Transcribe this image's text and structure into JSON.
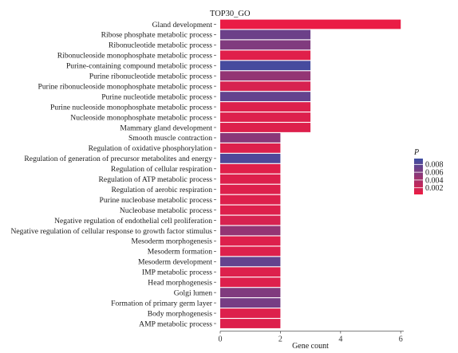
{
  "chart_data": {
    "type": "bar",
    "orientation": "horizontal",
    "title": "TOP30_GO",
    "xlabel": "Gene count",
    "ylabel": "",
    "xlim": [
      0,
      6.1
    ],
    "xticks": [
      0,
      2,
      4,
      6
    ],
    "categories": [
      "Gland development",
      "Ribose phosphate metabolic process",
      "Ribonucleotide metabolic process",
      "Ribonucleoside monophosphate metabolic process",
      "Purine-containing compound metabolic process",
      "Purine ribonucleotide metabolic process",
      "Purine ribonucleoside monophosphate metabolic process",
      "Purine nucleotide metabolic process",
      "Purine nucleoside monophosphate metabolic process",
      "Nucleoside monophosphate metabolic process",
      "Mammary gland development",
      "Smooth muscle contraction",
      "Regulation of oxidative phosphorylation",
      "Regulation of generation of precursor metabolites and energy",
      "Regulation of cellular respiration",
      "Regulation of ATP metabolic process",
      "Regulation of aerobic respiration",
      "Purine nucleobase metabolic process",
      "Nucleobase metabolic process",
      "Negative regulation of endothelial cell proliferation",
      "Negative regulation of cellular response to growth factor stimulus",
      "Mesoderm morphogenesis",
      "Mesoderm formation",
      "Mesoderm development",
      "IMP metabolic process",
      "Head morphogenesis",
      "Golgi lumen",
      "Formation of primary germ layer",
      "Body morphogenesis",
      "AMP metabolic process"
    ],
    "values": [
      6,
      3,
      3,
      3,
      3,
      3,
      3,
      3,
      3,
      3,
      3,
      2,
      2,
      2,
      2,
      2,
      2,
      2,
      2,
      2,
      2,
      2,
      2,
      2,
      2,
      2,
      2,
      2,
      2,
      2
    ],
    "p_values": [
      0.0005,
      0.007,
      0.006,
      0.001,
      0.009,
      0.005,
      0.0015,
      0.0075,
      0.0012,
      0.0012,
      0.0012,
      0.0055,
      0.0012,
      0.0085,
      0.001,
      0.0012,
      0.0012,
      0.0012,
      0.0012,
      0.0015,
      0.005,
      0.0012,
      0.0012,
      0.0075,
      0.0012,
      0.0012,
      0.006,
      0.0065,
      0.0012,
      0.0012
    ],
    "legend": {
      "title": "P",
      "position": "right",
      "ticks": [
        0.008,
        0.006,
        0.004,
        0.002
      ],
      "tick_labels": [
        "0.008",
        "0.006",
        "0.004",
        "0.002"
      ],
      "range": [
        0.0003,
        0.0095
      ],
      "color_low": "#ee1b43",
      "color_high": "#3c4ea3"
    },
    "grid": false
  }
}
